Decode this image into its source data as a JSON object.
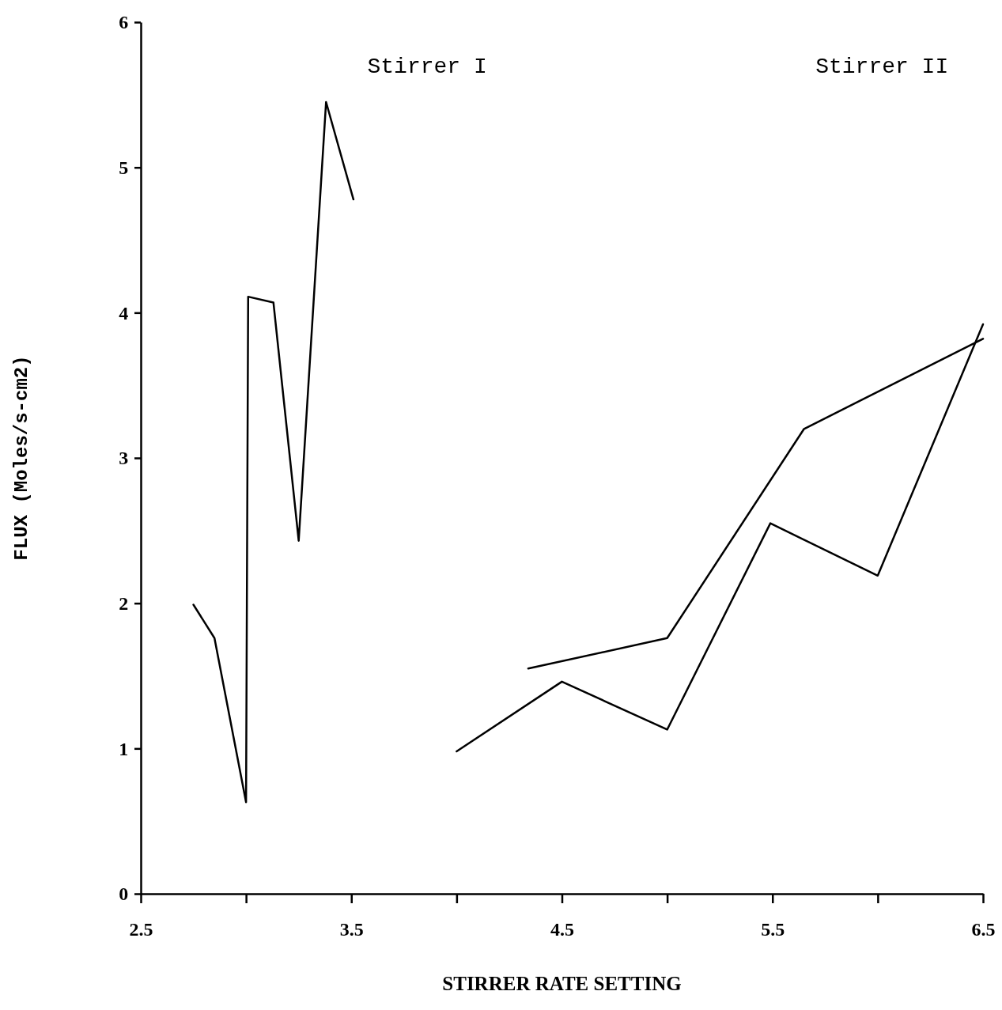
{
  "chart_data": {
    "type": "line",
    "xlabel": "STIRRER RATE SETTING",
    "ylabel": "FLUX (Moles/s-cm2)",
    "xlim": [
      2.5,
      6.5
    ],
    "ylim": [
      0,
      6
    ],
    "xticks": [
      2.5,
      {
        "value": 3,
        "label": null
      },
      3.5,
      {
        "value": 4,
        "label": null
      },
      4.5,
      {
        "value": 5,
        "label": null
      },
      5.5,
      {
        "value": 6,
        "label": null
      },
      6.5
    ],
    "yticks": [
      0,
      1,
      2,
      3,
      4,
      5,
      6
    ],
    "annotations": [
      "Stirrer I",
      "Stirrer II"
    ],
    "grid": false,
    "marker": "none",
    "line_style": "solid",
    "series": [
      {
        "color": "#000000",
        "x": [
          2.75,
          2.85,
          3.0,
          3.01,
          3.13,
          3.25,
          3.38,
          3.51
        ],
        "values": [
          1.99,
          1.76,
          0.63,
          4.11,
          4.07,
          2.43,
          5.45,
          4.78
        ]
      },
      {
        "color": "#000000",
        "x": [
          4.0,
          4.5,
          5.0,
          5.49,
          6.0,
          6.5
        ],
        "values": [
          0.98,
          1.46,
          1.13,
          2.55,
          2.19,
          3.92
        ]
      },
      {
        "color": "#000000",
        "x": [
          4.34,
          5.0,
          5.65,
          6.5
        ],
        "values": [
          1.55,
          1.76,
          3.2,
          3.82
        ]
      }
    ]
  }
}
